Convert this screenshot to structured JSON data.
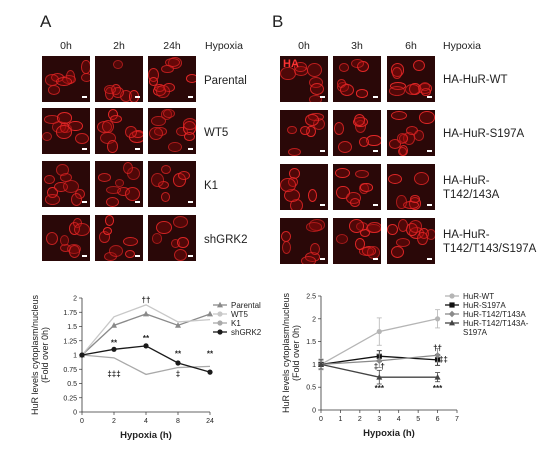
{
  "panelA": {
    "letter": "A",
    "columns": [
      "0h",
      "2h",
      "24h"
    ],
    "column_title": "Hypoxia",
    "rows": [
      "Parental",
      "WT5",
      "K1",
      "shGRK2"
    ]
  },
  "panelB": {
    "letter": "B",
    "columns": [
      "0h",
      "3h",
      "6h"
    ],
    "column_title": "Hypoxia",
    "stain_label": "HA",
    "rows": [
      {
        "line1": "HA-HuR-WT",
        "line2": ""
      },
      {
        "line1": "HA-HuR-S197A",
        "line2": ""
      },
      {
        "line1": "HA-HuR-",
        "line2": "T142/143A"
      },
      {
        "line1": "HA-HuR-",
        "line2": "T142/T143/S197A"
      }
    ]
  },
  "chart_data": [
    {
      "type": "line",
      "ylabel_line1": "HuR levels cytoplasm/nucleus",
      "ylabel_line2": "(Fold over 0h)",
      "xlabel": "Hypoxia (h)",
      "x_ticks": [
        "0",
        "2",
        "4",
        "8",
        "24"
      ],
      "y_ticks": [
        "0",
        "0.25",
        "0.5",
        "0.75",
        "1",
        "1.25",
        "1.5",
        "1.75",
        "2"
      ],
      "ylim": [
        0,
        2
      ],
      "x_scale": "categorical-evenly-spaced",
      "legend_position": "right",
      "series": [
        {
          "name": "Parental",
          "color": "#8a8a8a",
          "marker": "tri",
          "values": [
            1.0,
            1.52,
            1.72,
            1.52,
            1.72
          ]
        },
        {
          "name": "WT5",
          "color": "#c8c8c8",
          "marker": "none",
          "values": [
            1.0,
            1.67,
            1.88,
            1.58,
            1.62
          ]
        },
        {
          "name": "K1",
          "color": "#a9a9a9",
          "marker": "none",
          "values": [
            1.0,
            0.95,
            0.66,
            0.78,
            0.8
          ]
        },
        {
          "name": "shGRK2",
          "color": "#1a1a1a",
          "marker": "dot",
          "values": [
            1.0,
            1.1,
            1.16,
            0.86,
            0.7
          ]
        }
      ],
      "annotations": [
        {
          "x": "2",
          "y": 1.17,
          "text": "**"
        },
        {
          "x": "2",
          "y": 0.62,
          "text": "‡‡‡"
        },
        {
          "x": "4",
          "y": 1.25,
          "text": "**"
        },
        {
          "x": "4",
          "y": 1.92,
          "text": "††"
        },
        {
          "x": "8",
          "y": 0.97,
          "text": "**"
        },
        {
          "x": "8",
          "y": 0.62,
          "text": "‡"
        },
        {
          "x": "24",
          "y": 0.97,
          "text": "**"
        }
      ]
    },
    {
      "type": "line",
      "ylabel_line1": "HuR levels cytoplasm/nucleus",
      "ylabel_line2": "(Fold over 0h)",
      "xlabel": "Hypoxia (h)",
      "x_ticks": [
        "0",
        "1",
        "2",
        "3",
        "4",
        "5",
        "6",
        "7"
      ],
      "y_ticks": [
        "0",
        "0.5",
        "1",
        "1.5",
        "2",
        "2.5"
      ],
      "xlim": [
        0,
        7
      ],
      "ylim": [
        0,
        2.5
      ],
      "legend_position": "right",
      "series": [
        {
          "name": "HuR-WT",
          "color": "#b5b5b5",
          "marker": "dot",
          "x": [
            0,
            3,
            6
          ],
          "values": [
            1.0,
            1.72,
            2.0
          ],
          "err": [
            0.12,
            0.3,
            0.2
          ]
        },
        {
          "name": "HuR-S197A",
          "color": "#111111",
          "marker": "square",
          "x": [
            0,
            3,
            6
          ],
          "values": [
            1.0,
            1.18,
            1.1
          ],
          "err": [
            0.1,
            0.12,
            0.12
          ]
        },
        {
          "name": "HuR-T142/T143A",
          "color": "#8a8a8a",
          "marker": "diamond",
          "x": [
            0,
            3,
            6
          ],
          "values": [
            1.0,
            1.08,
            1.2
          ],
          "err": [
            0.1,
            0.15,
            0.15
          ]
        },
        {
          "name_line1": "HuR-T142/T143A-",
          "name_line2": "S197A",
          "color": "#444444",
          "marker": "tri",
          "x": [
            0,
            3,
            6
          ],
          "values": [
            1.0,
            0.72,
            0.72
          ],
          "err": [
            0.1,
            0.15,
            0.1
          ]
        }
      ],
      "annotations": [
        {
          "x": 3,
          "y": 0.42,
          "text": "***"
        },
        {
          "x": 3,
          "y": 0.9,
          "text": "‡ †"
        },
        {
          "x": 6,
          "y": 0.42,
          "text": "***"
        },
        {
          "x": 6,
          "y": 1.3,
          "text": "††"
        },
        {
          "x": 6.3,
          "y": 1.05,
          "text": "‡‡"
        }
      ]
    }
  ]
}
